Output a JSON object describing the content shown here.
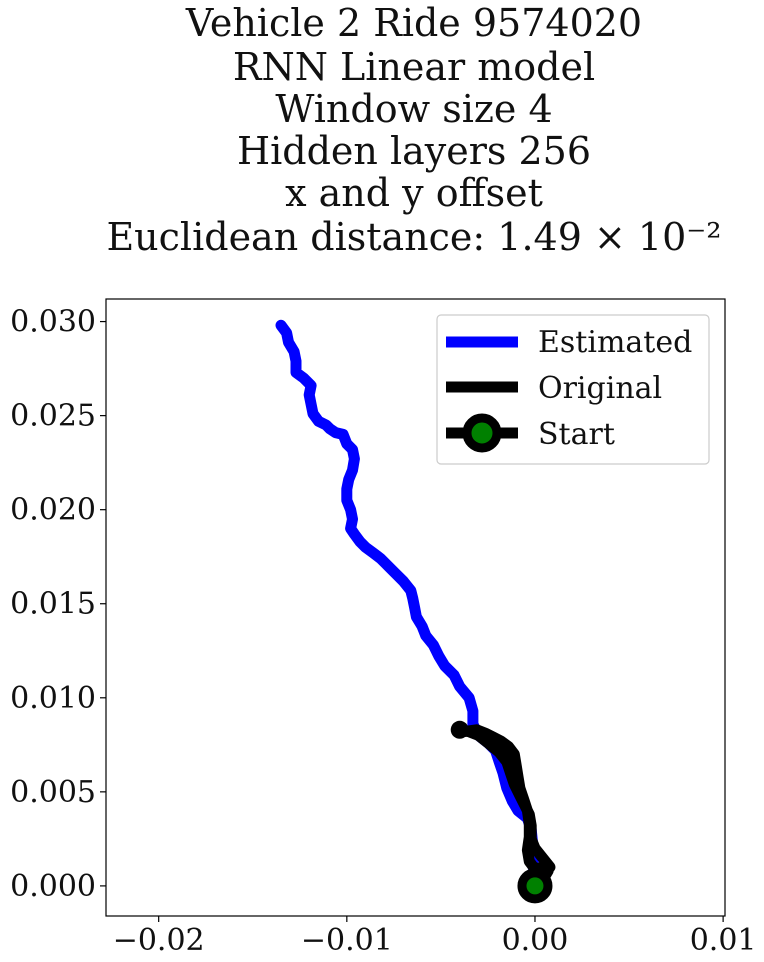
{
  "chart_data": {
    "type": "line",
    "title_lines": [
      "Vehicle 2 Ride 9574020",
      "RNN Linear model",
      "Window size 4",
      "Hidden layers 256",
      "x and y offset",
      "Euclidean distance: 1.49 × 10⁻²"
    ],
    "xlabel": "",
    "ylabel": "",
    "xlim": [
      -0.0228,
      0.0101
    ],
    "ylim": [
      -0.0016,
      0.0312
    ],
    "x_ticks": [
      -0.02,
      -0.01,
      0.0,
      0.01
    ],
    "x_tick_labels": [
      "−0.02",
      "−0.01",
      "0.00",
      "0.01"
    ],
    "y_ticks": [
      0.0,
      0.005,
      0.01,
      0.015,
      0.02,
      0.025,
      0.03
    ],
    "y_tick_labels": [
      "0.000",
      "0.005",
      "0.010",
      "0.015",
      "0.020",
      "0.025",
      "0.030"
    ],
    "grid": false,
    "legend_position": "top-right",
    "series": [
      {
        "name": "Estimated",
        "color": "#0000ff",
        "points": [
          [
            -0.0001,
            0.001
          ],
          [
            -0.0001,
            0.002
          ],
          [
            -0.0002,
            0.003
          ],
          [
            -0.0004,
            0.0036
          ],
          [
            -0.0009,
            0.004
          ],
          [
            -0.0012,
            0.0045
          ],
          [
            -0.0015,
            0.0052
          ],
          [
            -0.0017,
            0.006
          ],
          [
            -0.0019,
            0.0066
          ],
          [
            -0.0021,
            0.0072
          ],
          [
            -0.0025,
            0.0076
          ],
          [
            -0.003,
            0.008
          ],
          [
            -0.0033,
            0.0086
          ],
          [
            -0.0033,
            0.0093
          ],
          [
            -0.0035,
            0.01
          ],
          [
            -0.004,
            0.0106
          ],
          [
            -0.0043,
            0.0112
          ],
          [
            -0.0048,
            0.0117
          ],
          [
            -0.0051,
            0.0122
          ],
          [
            -0.0054,
            0.0128
          ],
          [
            -0.0058,
            0.0133
          ],
          [
            -0.006,
            0.0138
          ],
          [
            -0.0063,
            0.0143
          ],
          [
            -0.0064,
            0.0148
          ],
          [
            -0.0065,
            0.0153
          ],
          [
            -0.0066,
            0.0157
          ],
          [
            -0.007,
            0.0162
          ],
          [
            -0.0074,
            0.0166
          ],
          [
            -0.0078,
            0.017
          ],
          [
            -0.0082,
            0.0174
          ],
          [
            -0.0086,
            0.0177
          ],
          [
            -0.009,
            0.018
          ],
          [
            -0.0093,
            0.0183
          ],
          [
            -0.0096,
            0.0187
          ],
          [
            -0.0098,
            0.019
          ],
          [
            -0.0097,
            0.0195
          ],
          [
            -0.0098,
            0.02
          ],
          [
            -0.01,
            0.0205
          ],
          [
            -0.01,
            0.0211
          ],
          [
            -0.0099,
            0.0216
          ],
          [
            -0.0097,
            0.0221
          ],
          [
            -0.0096,
            0.0227
          ],
          [
            -0.0097,
            0.0232
          ],
          [
            -0.01,
            0.0235
          ],
          [
            -0.0102,
            0.024
          ],
          [
            -0.0106,
            0.0241
          ],
          [
            -0.0109,
            0.0243
          ],
          [
            -0.0111,
            0.0245
          ],
          [
            -0.0115,
            0.0247
          ],
          [
            -0.0118,
            0.0251
          ],
          [
            -0.0119,
            0.0256
          ],
          [
            -0.012,
            0.0261
          ],
          [
            -0.0119,
            0.0266
          ],
          [
            -0.0123,
            0.027
          ],
          [
            -0.0127,
            0.0273
          ],
          [
            -0.0127,
            0.0279
          ],
          [
            -0.0128,
            0.0284
          ],
          [
            -0.0131,
            0.0289
          ],
          [
            -0.0132,
            0.0294
          ],
          [
            -0.0135,
            0.0298
          ]
        ]
      },
      {
        "name": "Original",
        "color": "#000000",
        "points": [
          [
            0.0,
            0.0
          ],
          [
            0.0005,
            0.0006
          ],
          [
            0.0008,
            0.001
          ],
          [
            0.0004,
            0.0015
          ],
          [
            0.0,
            0.002
          ],
          [
            -0.0002,
            0.0025
          ],
          [
            -0.0002,
            0.0032
          ],
          [
            -0.0003,
            0.0038
          ],
          [
            -0.0005,
            0.0042
          ],
          [
            -0.0008,
            0.0048
          ],
          [
            -0.0011,
            0.0054
          ],
          [
            -0.0013,
            0.006
          ],
          [
            -0.0015,
            0.0066
          ],
          [
            -0.0019,
            0.0071
          ],
          [
            -0.0025,
            0.0076
          ],
          [
            -0.003,
            0.008
          ],
          [
            -0.0035,
            0.0082
          ],
          [
            -0.004,
            0.0083
          ],
          [
            -0.0038,
            0.0082
          ],
          [
            -0.0031,
            0.0083
          ],
          [
            -0.0026,
            0.0081
          ],
          [
            -0.0022,
            0.0079
          ],
          [
            -0.0018,
            0.0077
          ],
          [
            -0.0014,
            0.0074
          ],
          [
            -0.0011,
            0.007
          ],
          [
            -0.001,
            0.0064
          ],
          [
            -0.0009,
            0.0058
          ],
          [
            -0.0008,
            0.0052
          ],
          [
            -0.0006,
            0.0046
          ],
          [
            -0.0004,
            0.004
          ],
          [
            -0.0003,
            0.0033
          ],
          [
            -0.0003,
            0.0026
          ],
          [
            -0.0004,
            0.0019
          ],
          [
            -0.0003,
            0.0013
          ],
          [
            0.0,
            0.0009
          ],
          [
            0.0004,
            0.001
          ],
          [
            0.0007,
            0.0008
          ],
          [
            0.0004,
            0.0003
          ],
          [
            0.0,
            0.0
          ]
        ]
      }
    ],
    "start_marker": {
      "name": "Start",
      "point": [
        0.0,
        0.0
      ],
      "edge_color": "#000000",
      "face_color": "#008000"
    },
    "legend": [
      {
        "label": "Estimated",
        "color": "#0000ff",
        "marker": false
      },
      {
        "label": "Original",
        "color": "#000000",
        "marker": false
      },
      {
        "label": "Start",
        "color": "#000000",
        "marker": true,
        "marker_face": "#008000"
      }
    ]
  }
}
